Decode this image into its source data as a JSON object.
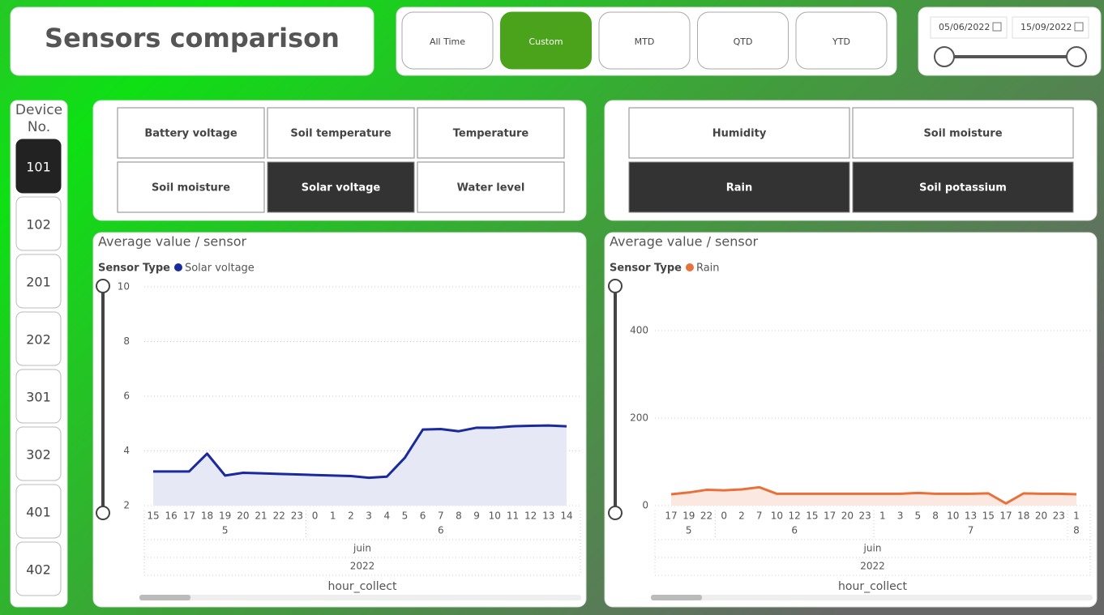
{
  "header": {
    "title": "Sensors comparison"
  },
  "period_buttons": [
    {
      "label": "All Time",
      "selected": false
    },
    {
      "label": "Custom",
      "selected": true
    },
    {
      "label": "MTD",
      "selected": false
    },
    {
      "label": "QTD",
      "selected": false
    },
    {
      "label": "YTD",
      "selected": false
    }
  ],
  "date_range": {
    "start": "05/06/2022",
    "end": "15/09/2022"
  },
  "device_slicer": {
    "title": "Device No.",
    "items": [
      {
        "label": "101",
        "selected": true
      },
      {
        "label": "102",
        "selected": false
      },
      {
        "label": "201",
        "selected": false
      },
      {
        "label": "202",
        "selected": false
      },
      {
        "label": "301",
        "selected": false
      },
      {
        "label": "302",
        "selected": false
      },
      {
        "label": "401",
        "selected": false
      },
      {
        "label": "402",
        "selected": false
      }
    ]
  },
  "sensor_slicers": [
    {
      "items": [
        {
          "label": "Battery voltage",
          "selected": false
        },
        {
          "label": "Soil temperature",
          "selected": false
        },
        {
          "label": "Temperature",
          "selected": false
        },
        {
          "label": "Soil moisture",
          "selected": false
        },
        {
          "label": "Solar voltage",
          "selected": true
        },
        {
          "label": "Water level",
          "selected": false
        }
      ]
    },
    {
      "items": [
        {
          "label": "Humidity",
          "selected": false
        },
        {
          "label": "Soil moisture",
          "selected": false
        },
        {
          "label": "Rain",
          "selected": true
        },
        {
          "label": "Soil potassium",
          "selected": true
        }
      ]
    }
  ],
  "chart_data": [
    {
      "type": "line",
      "title": "Average value / sensor",
      "legend_title": "Sensor Type",
      "x_title": "hour_collect",
      "categories": [
        15,
        16,
        17,
        18,
        19,
        20,
        21,
        22,
        23,
        0,
        1,
        2,
        3,
        4,
        5,
        6,
        7,
        8,
        9,
        10,
        11,
        12,
        13,
        14
      ],
      "day_groups": [
        {
          "label": "5",
          "count": 9
        },
        {
          "label": "6",
          "count": 15
        }
      ],
      "month": "juin",
      "year": "2022",
      "series": [
        {
          "name": "Solar voltage",
          "color": "#1a2a9c",
          "area_color": "#e6e8f5",
          "values": [
            3.25,
            3.25,
            3.25,
            3.9,
            3.1,
            3.2,
            3.18,
            3.16,
            3.14,
            3.12,
            3.1,
            3.08,
            3.02,
            3.06,
            3.75,
            4.78,
            4.8,
            4.72,
            4.85,
            4.85,
            4.9,
            4.92,
            4.93,
            4.9
          ]
        }
      ],
      "ylim": [
        2,
        10
      ],
      "yticks": [
        2,
        4,
        6,
        8,
        10
      ],
      "grid": true
    },
    {
      "type": "line",
      "title": "Average value / sensor",
      "legend_title": "Sensor Type",
      "x_title": "hour_collect",
      "categories": [
        17,
        19,
        22,
        0,
        2,
        7,
        10,
        12,
        15,
        17,
        20,
        23,
        1,
        3,
        5,
        8,
        10,
        13,
        15,
        17,
        18,
        20,
        23,
        1
      ],
      "day_groups": [
        {
          "label": "5",
          "count": 3
        },
        {
          "label": "6",
          "count": 9
        },
        {
          "label": "7",
          "count": 11
        },
        {
          "label": "8",
          "count": 1
        }
      ],
      "month": "juin",
      "year": "2022",
      "series": [
        {
          "name": "Rain",
          "color": "#e8703a",
          "area_color": "#fbe9e1",
          "values": [
            26,
            30,
            36,
            35,
            37,
            42,
            27,
            27,
            27,
            27,
            27,
            27,
            27,
            27,
            29,
            27,
            27,
            27,
            28,
            5,
            28,
            27,
            27,
            26
          ]
        }
      ],
      "ylim": [
        0,
        500
      ],
      "yticks": [
        0,
        200,
        400
      ],
      "grid": true
    }
  ]
}
